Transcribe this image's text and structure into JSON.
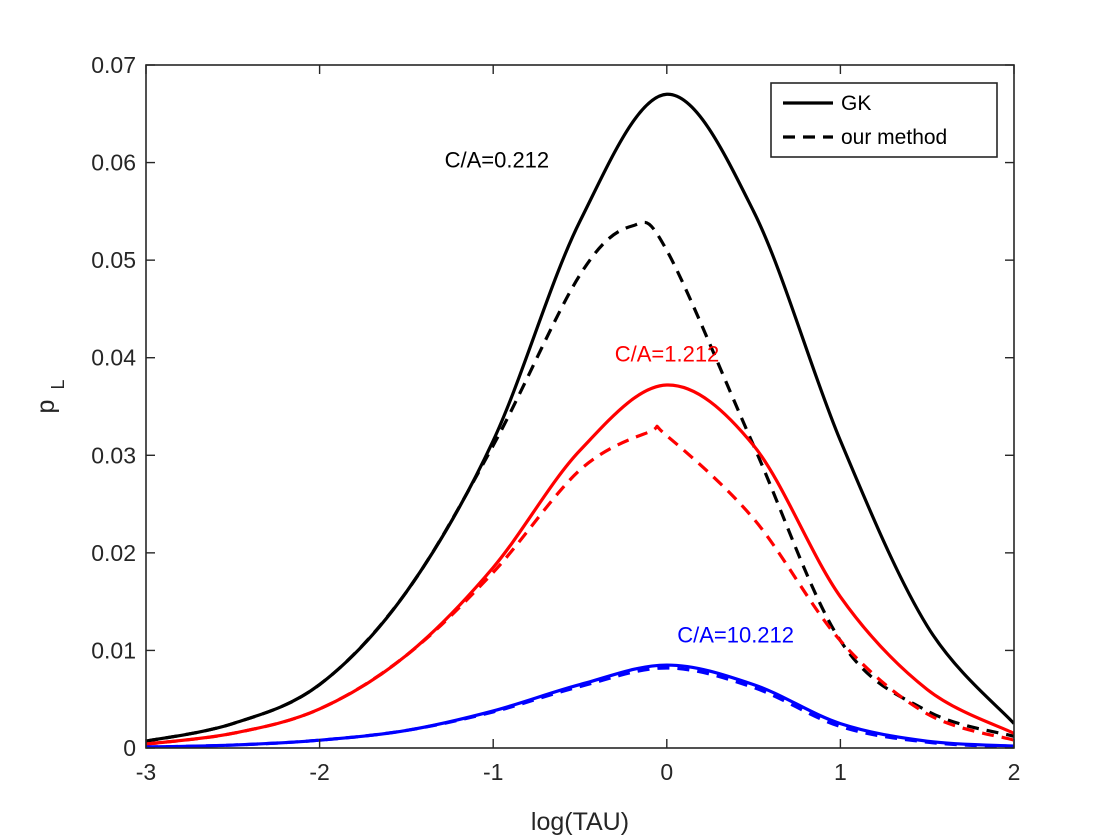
{
  "chart_data": {
    "type": "line",
    "title": "",
    "xlabel": "log(TAU)",
    "ylabel": "p",
    "ylabel_subscript": "L",
    "xlim": [
      -3,
      2
    ],
    "ylim": [
      0,
      0.07
    ],
    "xticks": [
      -3,
      -2,
      -1,
      0,
      1,
      2
    ],
    "xtick_labels": [
      "-3",
      "-2",
      "-1",
      "0",
      "1",
      "2"
    ],
    "yticks": [
      0,
      0.01,
      0.02,
      0.03,
      0.04,
      0.05,
      0.06,
      0.07
    ],
    "ytick_labels": [
      "0",
      "0.01",
      "0.02",
      "0.03",
      "0.04",
      "0.05",
      "0.06",
      "0.07"
    ],
    "grid": false,
    "legend_position": "top-right",
    "legend": [
      {
        "label": "GK",
        "style": "solid"
      },
      {
        "label": "our method",
        "style": "dashed"
      }
    ],
    "series": [
      {
        "name": "GK C/A=0.212",
        "color": "#000000",
        "style": "solid",
        "x": [
          -3.0,
          -2.5,
          -2.0,
          -1.5,
          -1.0,
          -0.5,
          0.0,
          0.5,
          1.0,
          1.5,
          2.0
        ],
        "y": [
          0.0007,
          0.0025,
          0.0065,
          0.016,
          0.0315,
          0.054,
          0.067,
          0.055,
          0.0315,
          0.0125,
          0.0025
        ]
      },
      {
        "name": "our method C/A=0.212",
        "color": "#000000",
        "style": "dashed",
        "x": [
          -3.0,
          -2.5,
          -2.0,
          -1.5,
          -1.0,
          -0.5,
          -0.2,
          0.0,
          0.5,
          1.0,
          1.5,
          2.0
        ],
        "y": [
          0.0007,
          0.0025,
          0.0065,
          0.016,
          0.031,
          0.0485,
          0.0535,
          0.051,
          0.031,
          0.011,
          0.0038,
          0.0012
        ]
      },
      {
        "name": "GK C/A=1.212",
        "color": "#ff0000",
        "style": "solid",
        "x": [
          -3.0,
          -2.5,
          -2.0,
          -1.5,
          -1.0,
          -0.5,
          0.0,
          0.5,
          1.0,
          1.5,
          2.0
        ],
        "y": [
          0.0004,
          0.0015,
          0.004,
          0.0095,
          0.0185,
          0.0305,
          0.0372,
          0.031,
          0.0155,
          0.006,
          0.0015
        ]
      },
      {
        "name": "our method C/A=1.212",
        "color": "#ff0000",
        "style": "dashed",
        "x": [
          -3.0,
          -2.5,
          -2.0,
          -1.5,
          -1.0,
          -0.5,
          -0.1,
          0.0,
          0.5,
          1.0,
          1.5,
          2.0
        ],
        "y": [
          0.0004,
          0.0015,
          0.004,
          0.0095,
          0.018,
          0.0285,
          0.0324,
          0.032,
          0.0235,
          0.011,
          0.0035,
          0.0008
        ]
      },
      {
        "name": "GK C/A=10.212",
        "color": "#0000ff",
        "style": "solid",
        "x": [
          -3.0,
          -2.5,
          -2.0,
          -1.5,
          -1.0,
          -0.5,
          0.0,
          0.5,
          1.0,
          1.5,
          2.0
        ],
        "y": [
          0.0001,
          0.0003,
          0.0008,
          0.0018,
          0.0038,
          0.0065,
          0.0085,
          0.0065,
          0.0025,
          0.0007,
          0.0002
        ]
      },
      {
        "name": "our method C/A=10.212",
        "color": "#0000ff",
        "style": "dashed",
        "x": [
          -3.0,
          -2.5,
          -2.0,
          -1.5,
          -1.0,
          -0.5,
          0.0,
          0.5,
          1.0,
          1.5,
          2.0
        ],
        "y": [
          0.0001,
          0.0003,
          0.0008,
          0.0018,
          0.0037,
          0.0063,
          0.0082,
          0.0062,
          0.0022,
          0.0006,
          0.0001
        ]
      }
    ],
    "annotations": [
      {
        "text": "C/A=0.212",
        "x": -1.28,
        "y": 0.0595,
        "color": "#000000"
      },
      {
        "text": "C/A=1.212",
        "x": -0.3,
        "y": 0.0396,
        "color": "#ff0000"
      },
      {
        "text": "C/A=10.212",
        "x": 0.06,
        "y": 0.0108,
        "color": "#0000ff"
      }
    ]
  }
}
